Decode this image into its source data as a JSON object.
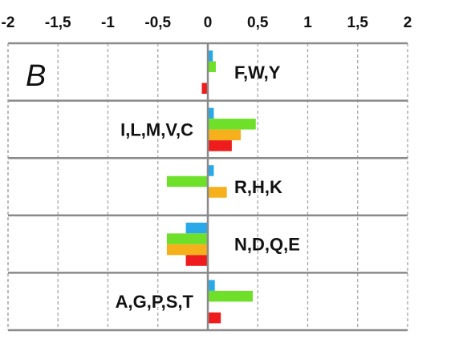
{
  "chart_data": {
    "type": "bar",
    "orientation": "horizontal",
    "panel_label": "B",
    "xlim": [
      -2,
      2
    ],
    "x_ticks": [
      "-2",
      "-1,5",
      "-1",
      "-0,5",
      "0",
      "0,5",
      "1",
      "1,5",
      "2"
    ],
    "x_tick_values": [
      -2,
      -1.5,
      -1,
      -0.5,
      0,
      0.5,
      1,
      1.5,
      2
    ],
    "grid": true,
    "categories": [
      "F,W,Y",
      "I,L,M,V,C",
      "R,H,K",
      "N,D,Q,E",
      "A,G,P,S,T"
    ],
    "category_label_side": [
      "right",
      "left",
      "right",
      "right",
      "left"
    ],
    "series": [
      {
        "color": "#2aa9e8",
        "values": [
          0.05,
          0.06,
          0.06,
          -0.22,
          0.07
        ]
      },
      {
        "color": "#6ee02a",
        "values": [
          0.08,
          0.48,
          -0.41,
          -0.41,
          0.45
        ]
      },
      {
        "color": "#f5b01c",
        "values": [
          0.0,
          0.33,
          0.19,
          -0.41,
          0.0
        ]
      },
      {
        "color": "#ee1c1c",
        "values": [
          -0.06,
          0.24,
          0.0,
          -0.22,
          0.13
        ]
      }
    ]
  }
}
